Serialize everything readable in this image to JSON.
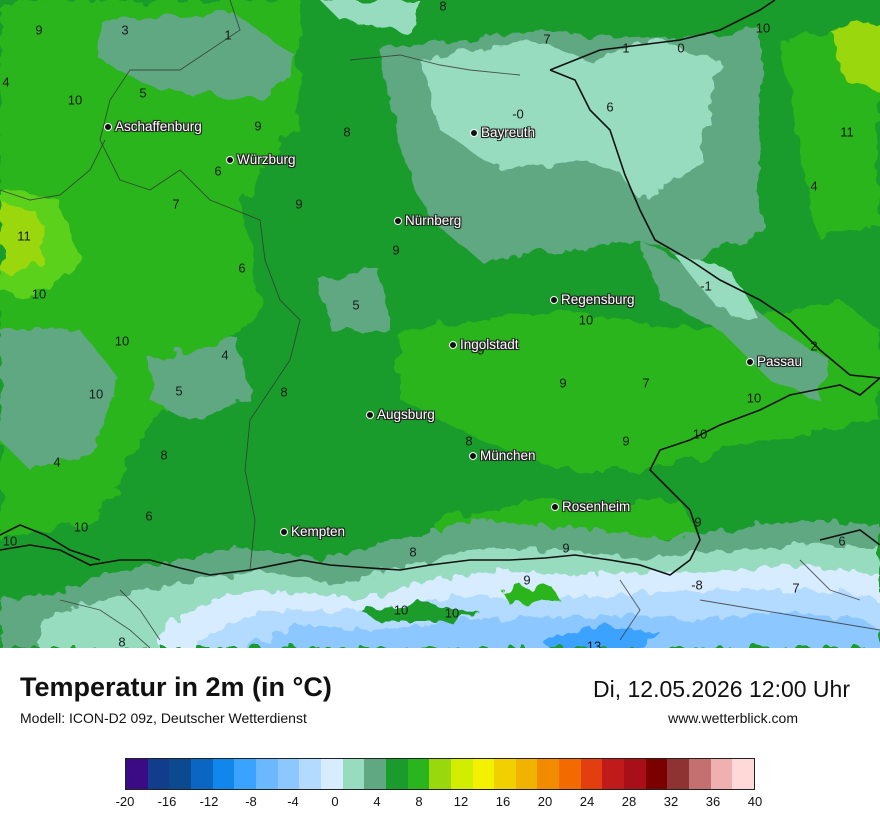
{
  "map": {
    "cities": [
      {
        "name": "Aschaffenburg"
      },
      {
        "name": "Würzburg"
      },
      {
        "name": "Bayreuth"
      },
      {
        "name": "Nürnberg"
      },
      {
        "name": "Regensburg"
      },
      {
        "name": "Ingolstadt"
      },
      {
        "name": "Passau"
      },
      {
        "name": "Augsburg"
      },
      {
        "name": "München"
      },
      {
        "name": "Rosenheim"
      },
      {
        "name": "Kempten"
      }
    ],
    "values": [
      "9",
      "3",
      "1",
      "8",
      "7",
      "1",
      "0",
      "10",
      "4",
      "5",
      "10",
      "9",
      "8",
      "-0",
      "6",
      "11",
      "6",
      "7",
      "9",
      "11",
      "4",
      "6",
      "9",
      "10",
      "5",
      "10",
      "4",
      "9",
      "-1",
      "9",
      "10",
      "7",
      "2",
      "5",
      "8",
      "8",
      "9",
      "10",
      "4",
      "8",
      "10",
      "9",
      "6",
      "10",
      "9",
      "6",
      "10",
      "10",
      "8",
      "9",
      "-8",
      "10",
      "7",
      "8",
      "13"
    ],
    "colors": {
      "green_light": "#5bd11a",
      "green": "#2ab51c",
      "green_dark": "#1a9c2c",
      "teal": "#5fa882",
      "mint": "#97dcbf",
      "blue_light": "#bfe2ff",
      "blue": "#7fbfff"
    }
  },
  "footer": {
    "title": "Temperatur in 2m (in °C)",
    "model": "Modell: ICON-D2 09z, Deutscher Wetterdienst",
    "datetime": "Di, 12.05.2026 12:00 Uhr",
    "site": "www.wetterblick.com"
  },
  "legend": {
    "colors": [
      "#3b0b86",
      "#103d8c",
      "#0b4a8e",
      "#0a66c2",
      "#1187ee",
      "#3aa2ff",
      "#6cb8ff",
      "#8cc7ff",
      "#b3dbff",
      "#d8ecff",
      "#97dcbf",
      "#5fa882",
      "#1a9c2c",
      "#2ab51c",
      "#9ad80e",
      "#d2ee00",
      "#f2f200",
      "#f2d000",
      "#f2b200",
      "#f28b00",
      "#f26a00",
      "#e23e0e",
      "#c01a1a",
      "#a80f18",
      "#7c0000",
      "#8e3232",
      "#c47070",
      "#f0b0b0",
      "#ffd8d8"
    ],
    "ticks": [
      "-20",
      "-16",
      "-12",
      "-8",
      "-4",
      "0",
      "4",
      "8",
      "12",
      "16",
      "20",
      "24",
      "28",
      "32",
      "36",
      "40"
    ]
  }
}
